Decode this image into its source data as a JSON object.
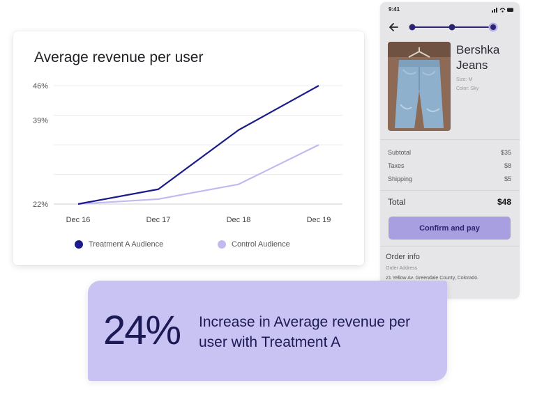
{
  "phone": {
    "status_time": "9:41",
    "product": {
      "name": "Bershka Jeans",
      "size": "Size: M",
      "color": "Color: Sky"
    },
    "summary": [
      {
        "label": "Subtotal",
        "value": "$35"
      },
      {
        "label": "Taxes",
        "value": "$8"
      },
      {
        "label": "Shipping",
        "value": "$5"
      }
    ],
    "total_label": "Total",
    "total_value": "$48",
    "confirm_label": "Confirm and pay",
    "order_info_title": "Order info",
    "order_address_label": "Order Address",
    "order_address": "21 Yellow Av. Greendale County, Colorado.",
    "steps_total": 3,
    "steps_current": 3
  },
  "chart_data": {
    "type": "line",
    "title": "Average revenue per user",
    "categories": [
      "Dec 16",
      "Dec 17",
      "Dec 18",
      "Dec 19"
    ],
    "yticks": [
      "46%",
      "39%",
      "22%"
    ],
    "ytick_values": [
      46,
      39,
      22
    ],
    "ylim": [
      22,
      46
    ],
    "series": [
      {
        "name": "Treatment A Audience",
        "color": "#1a1a8c",
        "points": [
          [
            0,
            22
          ],
          [
            1,
            25
          ],
          [
            2,
            37
          ],
          [
            3,
            46
          ]
        ]
      },
      {
        "name": "Control Audience",
        "color": "#c2b9f0",
        "points": [
          [
            0,
            22
          ],
          [
            1,
            23
          ],
          [
            2,
            26
          ],
          [
            3,
            34
          ]
        ]
      }
    ],
    "grid": true,
    "legend_position": "bottom"
  },
  "stat": {
    "value": "24%",
    "caption": "Increase in Average revenue per user with Treatment A"
  },
  "colors": {
    "brand_dark": "#1c1a55",
    "brand_light": "#c9c3f4",
    "button": "#a79fe0"
  }
}
